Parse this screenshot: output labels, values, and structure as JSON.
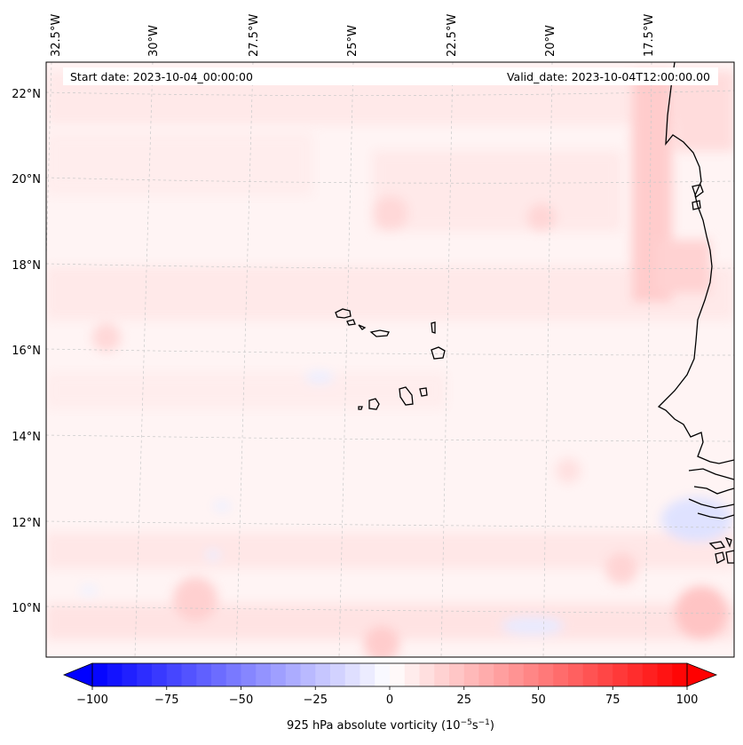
{
  "header": {
    "start_date": "Start date: 2023-10-04_00:00:00",
    "valid_date": "Valid_date: 2023-10-04T12:00:00.00"
  },
  "map": {
    "field": "925 hPa absolute vorticity",
    "longitude_labels": [
      "32.5°W",
      "30°W",
      "27.5°W",
      "25°W",
      "22.5°W",
      "20°W",
      "17.5°W"
    ],
    "latitude_labels": [
      "22°N",
      "20°N",
      "18°N",
      "16°N",
      "14°N",
      "12°N",
      "10°N"
    ],
    "gridlines": true,
    "coastline_color": "#000000",
    "features": [
      "Cape Verde islands",
      "West African coastline"
    ]
  },
  "colorbar": {
    "label": "925 hPa absolute vorticity (10",
    "label_exp1": "−5",
    "label_mid": "s",
    "label_exp2": "−1",
    "label_end": ")",
    "ticks": [
      "−100",
      "−75",
      "−50",
      "−25",
      "0",
      "25",
      "50",
      "75",
      "100"
    ],
    "tick_values": [
      -100,
      -75,
      -50,
      -25,
      0,
      25,
      50,
      75,
      100
    ],
    "min": -100,
    "max": 100,
    "colormap": "bwr",
    "low_color": "#0000ff",
    "mid_color": "#ffffff",
    "high_color": "#ff0000",
    "extend": "both"
  }
}
